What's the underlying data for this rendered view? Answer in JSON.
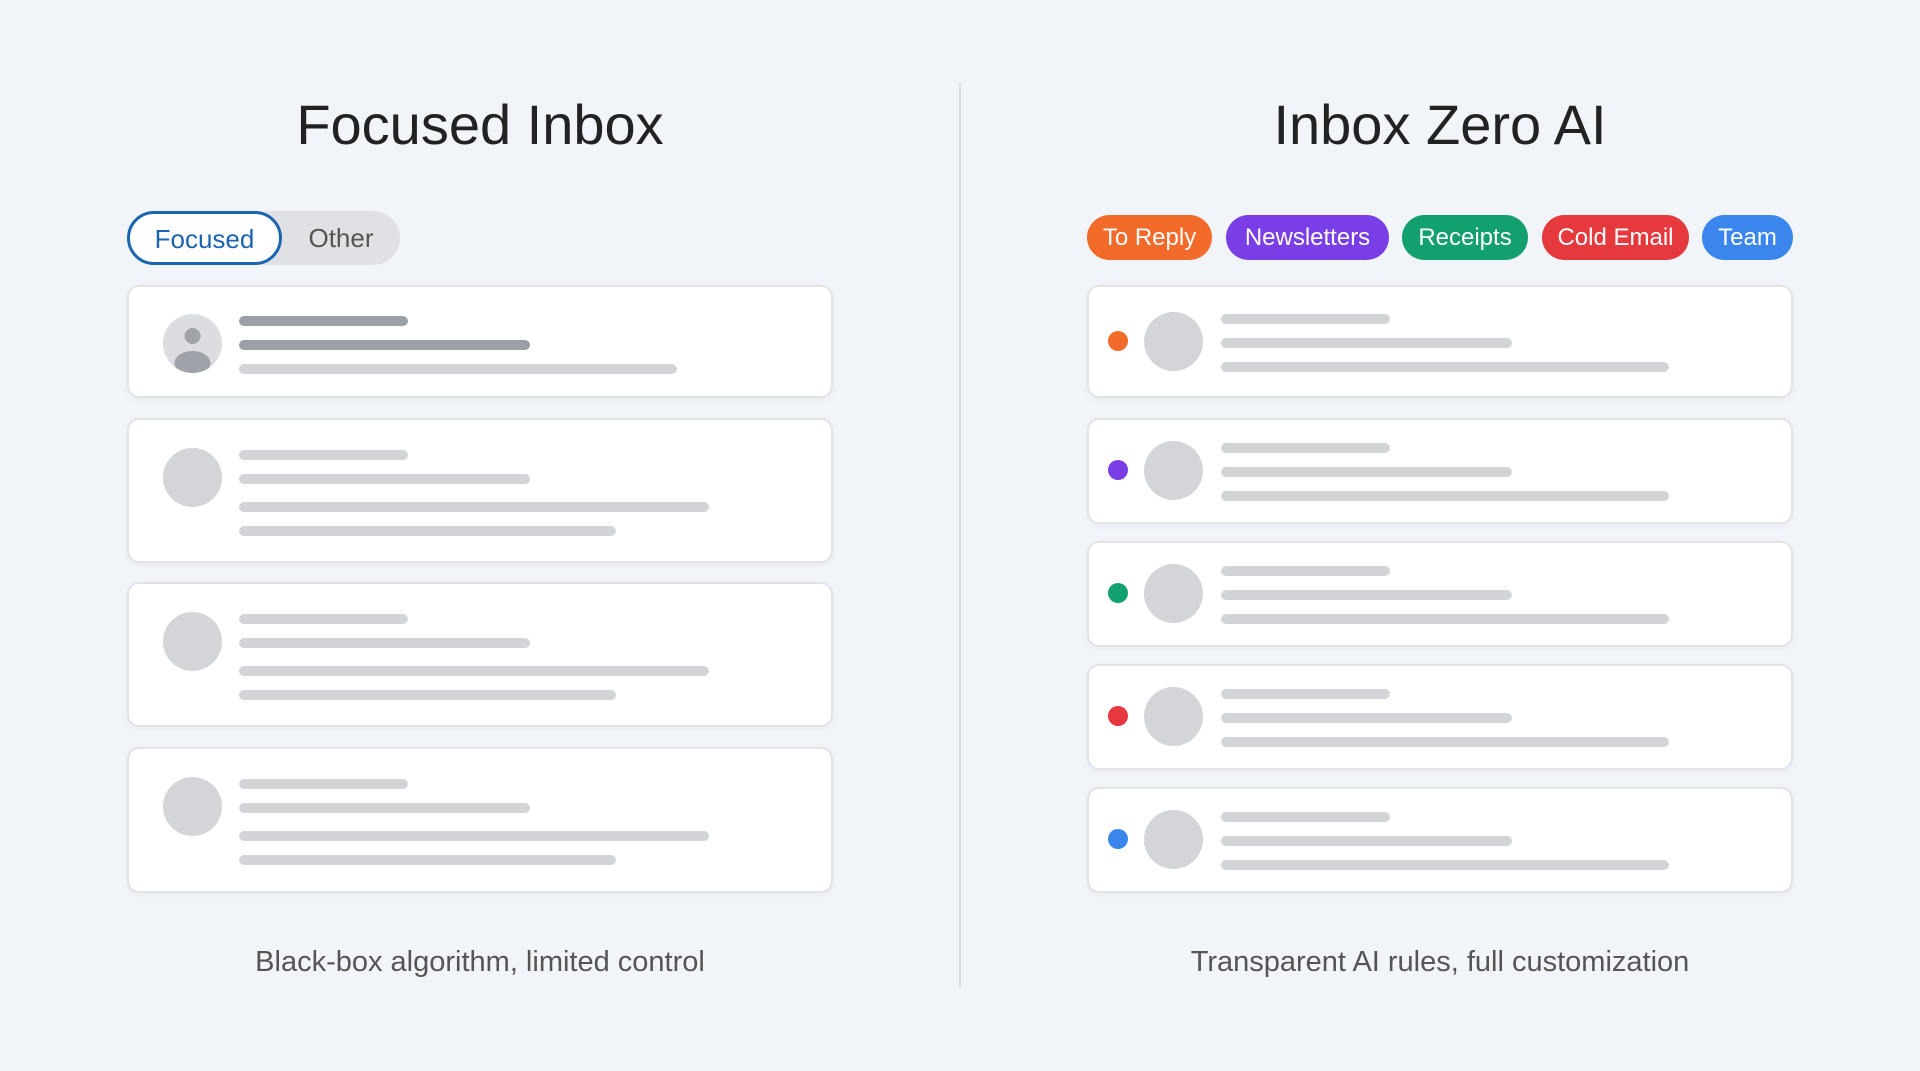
{
  "left": {
    "title": "Focused Inbox",
    "tabs": [
      {
        "label": "Focused",
        "active": true
      },
      {
        "label": "Other",
        "active": false
      }
    ],
    "caption": "Black-box algorithm, limited control",
    "accent": "#1b64b0"
  },
  "right": {
    "title": "Inbox Zero AI",
    "labels": [
      {
        "label": "To Reply",
        "color": "#f26b2a"
      },
      {
        "label": "Newsletters",
        "color": "#7a3ee6"
      },
      {
        "label": "Receipts",
        "color": "#12a06e"
      },
      {
        "label": "Cold Email",
        "color": "#e5393e"
      },
      {
        "label": "Team",
        "color": "#3a86ec"
      }
    ],
    "caption": "Transparent AI rules, full customization"
  }
}
